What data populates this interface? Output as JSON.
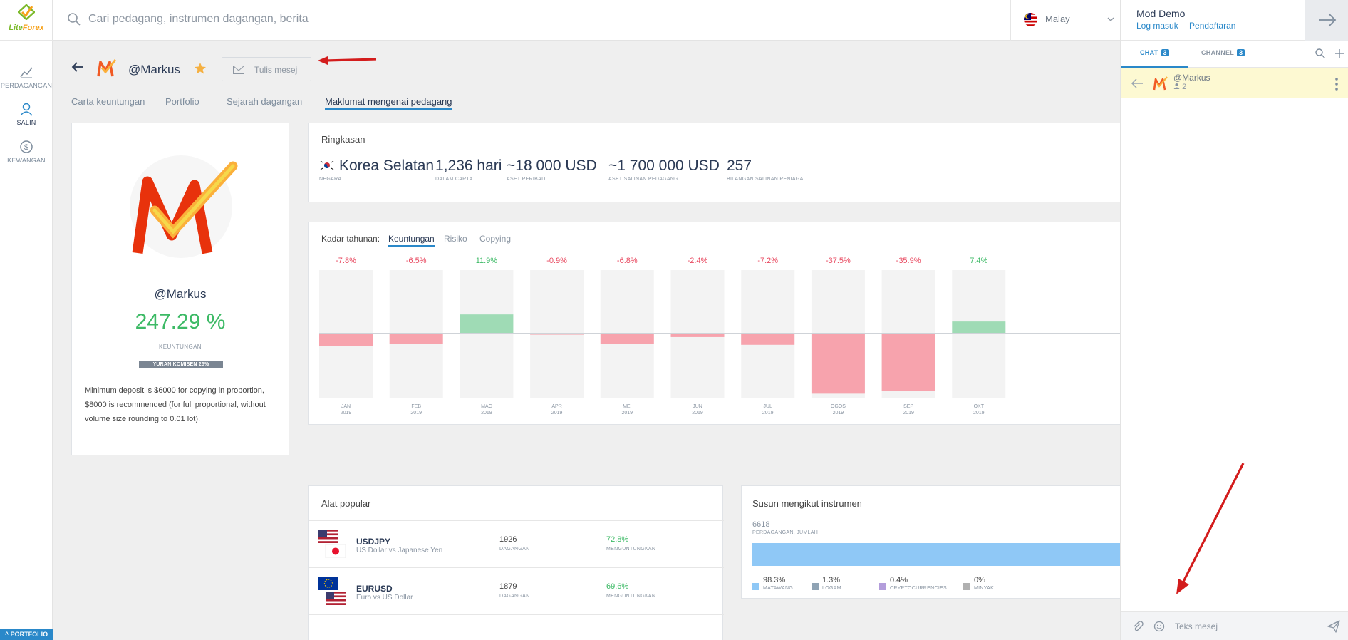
{
  "brand": {
    "name_part1": "Lite",
    "name_part2": "Forex"
  },
  "rail": {
    "items": [
      {
        "label": "PERDAGANGAN",
        "icon": "chart-icon"
      },
      {
        "label": "SALIN",
        "icon": "user-icon"
      },
      {
        "label": "KEWANGAN",
        "icon": "dollar-icon"
      }
    ],
    "portfolio_label": "^ PORTFOLIO"
  },
  "search": {
    "placeholder": "Cari pedagang, instrumen dagangan, berita",
    "value": ""
  },
  "language": {
    "label": "Malay"
  },
  "account": {
    "name": "Mod Demo",
    "login": "Log masuk",
    "register": "Pendaftaran"
  },
  "chat_panel": {
    "tabs": [
      {
        "label": "CHAT",
        "count": "3"
      },
      {
        "label": "CHANNEL",
        "count": "3"
      }
    ],
    "active_chat": {
      "name": "@Markus",
      "members": "2"
    },
    "message_placeholder": "Teks mesej"
  },
  "trader": {
    "name": "@Markus",
    "write_message": "Tulis mesej",
    "profit": "247.29 %",
    "profit_label": "KEUNTUNGAN",
    "fee": "YURAN KOMISEN 25%",
    "description": "Minimum deposit is $6000 for copying in proportion, $8000 is recommended (for full proportional, without volume size rounding to 0.01 lot)."
  },
  "subtabs": [
    "Carta keuntungan",
    "Portfolio",
    "Sejarah dagangan",
    "Maklumat mengenai pedagang"
  ],
  "summary": {
    "title": "Ringkasan",
    "country": {
      "value": "Korea Selatan",
      "label": "NEGARA"
    },
    "days": {
      "value": "1,236 hari",
      "label": "DALAM CARTA"
    },
    "personal": {
      "value": "~18 000 USD",
      "label": "ASET PERIBADI"
    },
    "copy_assets": {
      "value": "~1 700 000 USD",
      "label": "ASET SALINAN PEDAGANG"
    },
    "copies": {
      "value": "257",
      "label": "BILANGAN SALINAN PENIAGA"
    }
  },
  "annual": {
    "label": "Kadar tahunan:",
    "tabs": [
      "Keuntungan",
      "Risiko",
      "Copying"
    ]
  },
  "chart_data": {
    "type": "bar",
    "categories": [
      "JAN",
      "FEB",
      "MAC",
      "APR",
      "MEI",
      "JUN",
      "JUL",
      "OGOS",
      "SEP",
      "OKT"
    ],
    "years": [
      "2019",
      "2019",
      "2019",
      "2019",
      "2019",
      "2019",
      "2019",
      "2019",
      "2019",
      "2019"
    ],
    "values": [
      -7.8,
      -6.5,
      11.9,
      -0.9,
      -6.8,
      -2.4,
      -7.2,
      -37.5,
      -35.9,
      7.4
    ],
    "value_labels": [
      "-7.8%",
      "-6.5%",
      "11.9%",
      "-0.9%",
      "-6.8%",
      "-2.4%",
      "-7.2%",
      "-37.5%",
      "-35.9%",
      "7.4%"
    ],
    "ylim": [
      -40,
      40
    ],
    "colors": {
      "positive": "#9fdbb5",
      "negative": "#f7a3ad",
      "positive_text": "#3dba66",
      "negative_text": "#e8485f",
      "track": "#f3f3f3"
    }
  },
  "popular": {
    "title": "Alat popular",
    "rows": [
      {
        "symbol": "USDJPY",
        "desc": "US Dollar vs Japanese Yen",
        "trades": "1926",
        "trades_label": "DAGANGAN",
        "win": "72.8%",
        "win_label": "MENGUNTUNGKAN"
      },
      {
        "symbol": "EURUSD",
        "desc": "Euro vs US Dollar",
        "trades": "1879",
        "trades_label": "DAGANGAN",
        "win": "69.6%",
        "win_label": "MENGUNTUNGKAN"
      }
    ]
  },
  "sort": {
    "title": "Susun mengikut instrumen",
    "count": "6618",
    "count_label": "PERDAGANGAN, JUMLAH",
    "items": [
      {
        "value": "98.3%",
        "label": "MATAWANG",
        "share": 98.3,
        "color": "#8fc8f6"
      },
      {
        "value": "1.3%",
        "label": "LOGAM",
        "share": 1.3,
        "color": "#8fa3b4"
      },
      {
        "value": "0.4%",
        "label": "CRYPTOCURRENCIES",
        "share": 0.4,
        "color": "#b39ddb"
      },
      {
        "value": "0%",
        "label": "MINYAK",
        "share": 0,
        "color": "#b0b0b0"
      }
    ]
  }
}
